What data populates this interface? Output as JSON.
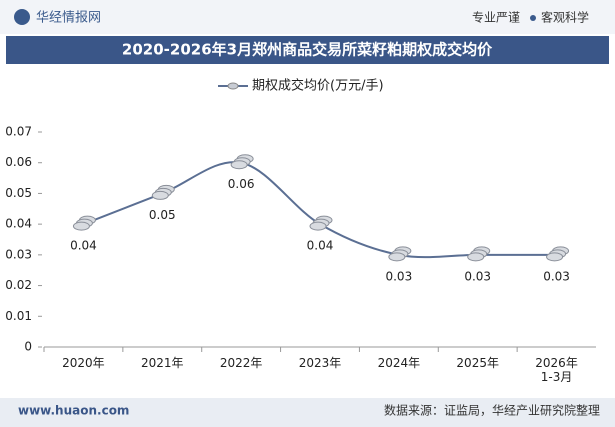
{
  "header": {
    "brand": "华经情报网",
    "slogan_left": "专业严谨",
    "slogan_right": "客观科学"
  },
  "chart_data": {
    "type": "line",
    "title": "2020-2026年3月郑州商品交易所菜籽粕期权成交均价",
    "categories": [
      "2020年",
      "2021年",
      "2022年",
      "2023年",
      "2024年",
      "2025年",
      "2026年\n1-3月"
    ],
    "series": [
      {
        "name": "期权成交均价(万元/手)",
        "color": "#5b6f93",
        "values": [
          0.04,
          0.05,
          0.06,
          0.04,
          0.03,
          0.03,
          0.03
        ]
      }
    ],
    "ylim": [
      0,
      0.07
    ],
    "yticks": [
      0,
      0.01,
      0.02,
      0.03,
      0.04,
      0.05,
      0.06,
      0.07
    ]
  },
  "footer": {
    "website": "www.huaon.com",
    "source": "数据来源：证监局，华经产业研究院整理"
  }
}
